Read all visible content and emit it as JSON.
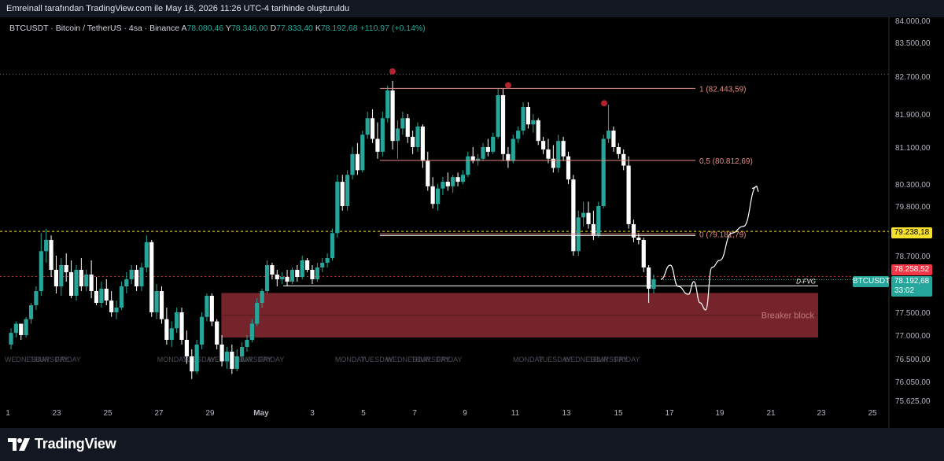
{
  "header": {
    "text": "Emreinall tarafından TradingView.com ile May 16, 2026 11:26 UTC-4 tarihinde oluşturuldu"
  },
  "symbol": {
    "name": "BTCUSDT · Bitcoin / TetherUS · 4sa · Binance",
    "o_label": "A",
    "o": "78.080,46",
    "h_label": "Y",
    "h": "78.346,00",
    "l_label": "D",
    "l": "77.833,40",
    "c_label": "K",
    "c": "78.192,68",
    "change": "+110,97 (+0,14%)"
  },
  "price_labels": {
    "level": "79.238,18",
    "alert": "78.258,52",
    "ticker": "BTCUSDT",
    "last": "78.192,68",
    "countdown": "33:02"
  },
  "annotations": {
    "fib_1": "1 (82.443,59)",
    "fib_05": "0,5 (80.812,69)",
    "fib_0": "0 (79.181,79)",
    "dfvg": "D-FVG",
    "breaker": "Breaker block"
  },
  "footer": {
    "brand": "TradingView"
  },
  "colors": {
    "up": "#26a69a",
    "down": "#ffffff",
    "fib": "#e28a82",
    "breaker": "#8b2a33",
    "level": "#f7e02b",
    "alert": "#f23645",
    "last": "#26a69a"
  },
  "chart_data": {
    "type": "candlestick",
    "symbol": "BTCUSDT",
    "y_ticks": [
      84000,
      83500,
      82700,
      81900,
      81100,
      80300,
      79800,
      78700,
      77500,
      77000,
      76500,
      76050,
      75625
    ],
    "y_tick_labels": [
      "84.000,00",
      "83.500,00",
      "82.700,00",
      "81.900,00",
      "81.100,00",
      "80.300,00",
      "79.800,00",
      "78.700,00",
      "77.500,00",
      "77.000,00",
      "76.500,00",
      "76.050,00",
      "75.625,00"
    ],
    "x_ticks": [
      "1",
      "23",
      "25",
      "27",
      "29",
      "May",
      "3",
      "5",
      "7",
      "9",
      "11",
      "13",
      "15",
      "17",
      "19",
      "21",
      "23",
      "25"
    ],
    "weekday_labels": [
      {
        "x": "Apr 21",
        "t": "WEDNESDAY"
      },
      {
        "x": "Apr 22",
        "t": "THURSDAY"
      },
      {
        "x": "Apr 23",
        "t": "FRIDAY"
      },
      {
        "x": "Apr 27",
        "t": "MONDAY"
      },
      {
        "x": "Apr 28",
        "t": "TUESDAY"
      },
      {
        "x": "Apr 29",
        "t": "WEDNESDAY"
      },
      {
        "x": "Apr 30",
        "t": "THURSDAY"
      },
      {
        "x": "May 1",
        "t": "FRIDAY"
      },
      {
        "x": "May 4",
        "t": "MONDAY"
      },
      {
        "x": "May 5",
        "t": "TUESDAY"
      },
      {
        "x": "May 6",
        "t": "WEDNESDAY"
      },
      {
        "x": "May 7",
        "t": "THURSDAY"
      },
      {
        "x": "May 8",
        "t": "FRIDAY"
      },
      {
        "x": "May 11",
        "t": "MONDAY"
      },
      {
        "x": "May 12",
        "t": "TUESDAY"
      },
      {
        "x": "May 13",
        "t": "WEDNESDAY"
      },
      {
        "x": "May 14",
        "t": "THURSDAY"
      },
      {
        "x": "May 15",
        "t": "FRIDAY"
      }
    ],
    "horizontal_levels": {
      "level": 79238.18,
      "alert": 78258.52,
      "last": 78192.68,
      "top_dotted": 82750,
      "dfvg": 78060
    },
    "fib_levels": [
      82443.59,
      80812.69,
      79181.79
    ],
    "breaker_block": {
      "top": 77910,
      "bottom": 76950,
      "from": "Apr 29",
      "to": "May 23"
    },
    "swing_high_markers": [
      82760,
      82460,
      82080
    ],
    "projection_path": [
      78200,
      78500,
      78050,
      77880,
      78150,
      77700,
      77550,
      78450,
      78600,
      79200,
      79350,
      80250
    ],
    "candles_ohlc": [
      [
        76800,
        77150,
        76700,
        77050
      ],
      [
        77050,
        77300,
        76950,
        77250
      ],
      [
        77250,
        77250,
        76900,
        77000
      ],
      [
        77000,
        77400,
        76950,
        77350
      ],
      [
        77350,
        77700,
        77250,
        77650
      ],
      [
        77650,
        78050,
        77550,
        77950
      ],
      [
        77950,
        79200,
        77850,
        78800
      ],
      [
        78800,
        79300,
        78550,
        79050
      ],
      [
        79050,
        79150,
        78250,
        78400
      ],
      [
        78400,
        78700,
        77900,
        78050
      ],
      [
        78050,
        78650,
        77850,
        78500
      ],
      [
        78500,
        78750,
        78150,
        78350
      ],
      [
        78350,
        78600,
        77800,
        77850
      ],
      [
        77850,
        78500,
        77750,
        78400
      ],
      [
        78400,
        78650,
        77950,
        78050
      ],
      [
        78050,
        78400,
        77950,
        78300
      ],
      [
        78300,
        78600,
        77800,
        77950
      ],
      [
        77950,
        78250,
        77650,
        77700
      ],
      [
        77700,
        78150,
        77600,
        78000
      ],
      [
        78000,
        78200,
        77650,
        77750
      ],
      [
        77750,
        77950,
        77400,
        77500
      ],
      [
        77500,
        77750,
        77350,
        77600
      ],
      [
        77600,
        78150,
        77550,
        78050
      ],
      [
        78050,
        78350,
        77900,
        78200
      ],
      [
        78200,
        78500,
        78100,
        78400
      ],
      [
        78400,
        78500,
        77950,
        78050
      ],
      [
        78050,
        78550,
        77950,
        78450
      ],
      [
        78450,
        79150,
        78350,
        79000
      ],
      [
        79000,
        79050,
        77400,
        77500
      ],
      [
        77500,
        78100,
        77350,
        77950
      ],
      [
        77950,
        78050,
        77250,
        77350
      ],
      [
        77350,
        77600,
        76800,
        76900
      ],
      [
        76900,
        77300,
        76750,
        77150
      ],
      [
        77150,
        77600,
        77050,
        77500
      ],
      [
        77500,
        77600,
        76800,
        76900
      ],
      [
        76900,
        77100,
        76400,
        76550
      ],
      [
        76550,
        76700,
        76100,
        76250
      ],
      [
        76250,
        76900,
        76200,
        76800
      ],
      [
        76800,
        77500,
        76700,
        77400
      ],
      [
        77400,
        77900,
        77300,
        77850
      ],
      [
        77850,
        77900,
        77200,
        77300
      ],
      [
        77300,
        77350,
        76700,
        76800
      ],
      [
        76800,
        77000,
        76350,
        76450
      ],
      [
        76450,
        76750,
        76300,
        76650
      ],
      [
        76650,
        76800,
        76200,
        76300
      ],
      [
        76300,
        76700,
        76250,
        76550
      ],
      [
        76550,
        76850,
        76450,
        76750
      ],
      [
        76750,
        77000,
        76650,
        76900
      ],
      [
        76900,
        77350,
        76850,
        77250
      ],
      [
        77250,
        77800,
        77200,
        77700
      ],
      [
        77700,
        78000,
        77600,
        77950
      ],
      [
        77950,
        78600,
        77900,
        78500
      ],
      [
        78500,
        78550,
        78200,
        78300
      ],
      [
        78300,
        78400,
        78050,
        78200
      ],
      [
        78200,
        78350,
        78100,
        78250
      ],
      [
        78250,
        78400,
        78050,
        78150
      ],
      [
        78150,
        78450,
        78100,
        78400
      ],
      [
        78400,
        78500,
        78150,
        78250
      ],
      [
        78250,
        78700,
        78200,
        78600
      ],
      [
        78600,
        78650,
        78350,
        78400
      ],
      [
        78400,
        78500,
        78100,
        78200
      ],
      [
        78200,
        78550,
        78150,
        78450
      ],
      [
        78450,
        78650,
        78350,
        78550
      ],
      [
        78550,
        78750,
        78450,
        78650
      ],
      [
        78650,
        79300,
        78600,
        79200
      ],
      [
        79200,
        80500,
        79100,
        80350
      ],
      [
        80350,
        80500,
        79700,
        79800
      ],
      [
        79800,
        80600,
        79700,
        80500
      ],
      [
        80500,
        81100,
        80400,
        80950
      ],
      [
        80950,
        81200,
        80500,
        80600
      ],
      [
        80600,
        81500,
        80550,
        81400
      ],
      [
        81400,
        81950,
        81300,
        81800
      ],
      [
        81800,
        82000,
        81200,
        81300
      ],
      [
        81300,
        81700,
        80850,
        81000
      ],
      [
        81000,
        81950,
        80900,
        81800
      ],
      [
        81800,
        82500,
        81700,
        82400
      ],
      [
        82400,
        82600,
        81050,
        81250
      ],
      [
        81250,
        81750,
        80850,
        81550
      ],
      [
        81550,
        81950,
        81400,
        81800
      ],
      [
        81800,
        81900,
        81200,
        81350
      ],
      [
        81350,
        81500,
        80950,
        81100
      ],
      [
        81100,
        81700,
        81000,
        81600
      ],
      [
        81600,
        81650,
        80650,
        80800
      ],
      [
        80800,
        81000,
        80150,
        80250
      ],
      [
        80250,
        80450,
        79750,
        79850
      ],
      [
        79850,
        80300,
        79700,
        80200
      ],
      [
        80200,
        80450,
        80050,
        80350
      ],
      [
        80350,
        80550,
        80150,
        80250
      ],
      [
        80250,
        80500,
        80100,
        80450
      ],
      [
        80450,
        80550,
        80250,
        80350
      ],
      [
        80350,
        80600,
        80300,
        80500
      ],
      [
        80500,
        81000,
        80450,
        80900
      ],
      [
        80900,
        81100,
        80750,
        80800
      ],
      [
        80800,
        80950,
        80700,
        80850
      ],
      [
        80850,
        81200,
        80800,
        81100
      ],
      [
        81100,
        81300,
        80900,
        81000
      ],
      [
        81000,
        81450,
        80950,
        81350
      ],
      [
        81350,
        82450,
        81300,
        82300
      ],
      [
        82300,
        82450,
        80800,
        80950
      ],
      [
        80950,
        81100,
        80650,
        80800
      ],
      [
        80800,
        81400,
        80750,
        81300
      ],
      [
        81300,
        81600,
        81200,
        81500
      ],
      [
        81500,
        82150,
        81400,
        82050
      ],
      [
        82050,
        82150,
        81550,
        81650
      ],
      [
        81650,
        81900,
        81450,
        81750
      ],
      [
        81750,
        81800,
        81150,
        81250
      ],
      [
        81250,
        81350,
        80950,
        81050
      ],
      [
        81050,
        81300,
        80750,
        80850
      ],
      [
        80850,
        81150,
        80550,
        80650
      ],
      [
        80650,
        81400,
        80550,
        81250
      ],
      [
        81250,
        81350,
        80800,
        80900
      ],
      [
        80900,
        81000,
        80300,
        80400
      ],
      [
        80400,
        80500,
        78700,
        78800
      ],
      [
        78800,
        79700,
        78700,
        79550
      ],
      [
        79550,
        79900,
        79350,
        79650
      ],
      [
        79650,
        79900,
        79300,
        79400
      ],
      [
        79400,
        79700,
        79050,
        79150
      ],
      [
        79150,
        79900,
        79100,
        79800
      ],
      [
        79800,
        81400,
        79750,
        81300
      ],
      [
        81300,
        82100,
        81200,
        81500
      ],
      [
        81500,
        81600,
        81000,
        81100
      ],
      [
        81100,
        81200,
        80850,
        80950
      ],
      [
        80950,
        81050,
        80600,
        80700
      ],
      [
        80700,
        80900,
        79300,
        79400
      ],
      [
        79400,
        79500,
        79000,
        79100
      ],
      [
        79100,
        79200,
        78950,
        79050
      ],
      [
        79050,
        79100,
        78350,
        78450
      ],
      [
        78450,
        78500,
        77700,
        78000
      ],
      [
        78000,
        78300,
        77900,
        78200
      ]
    ]
  }
}
